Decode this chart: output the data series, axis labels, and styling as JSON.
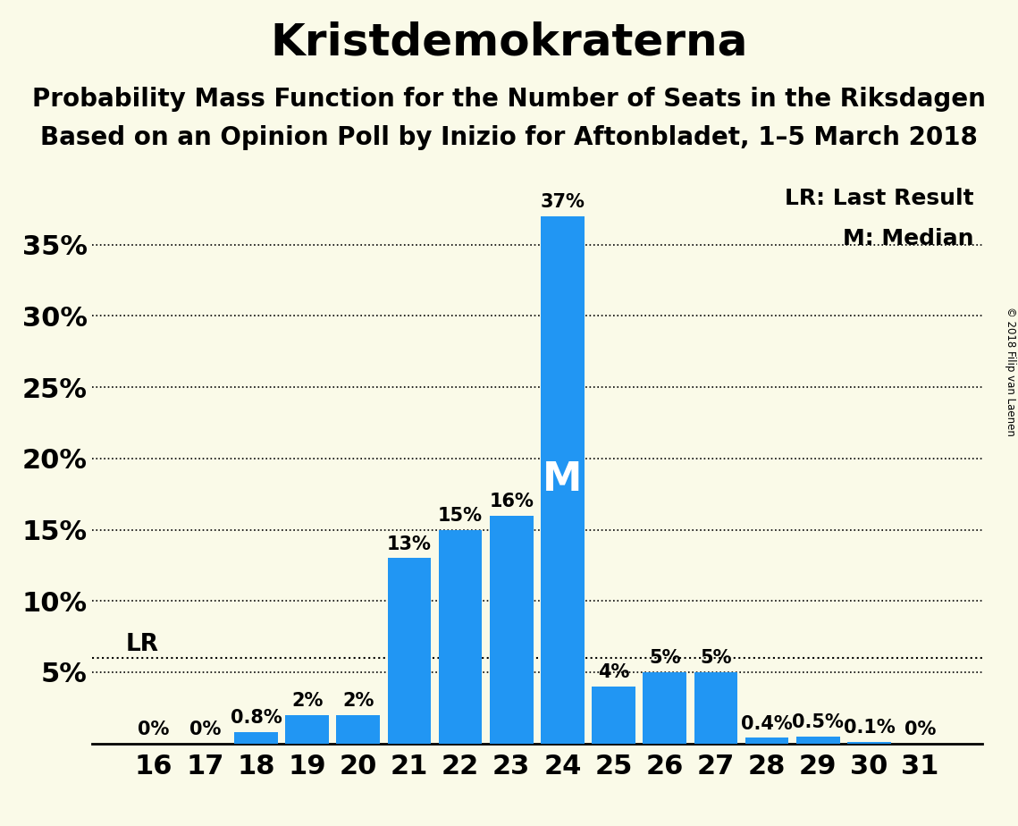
{
  "title": "Kristdemokraterna",
  "subtitle1": "Probability Mass Function for the Number of Seats in the Riksdagen",
  "subtitle2": "Based on an Opinion Poll by Inizio for Aftonbladet, 1–5 March 2018",
  "copyright": "© 2018 Filip van Laenen",
  "seats": [
    16,
    17,
    18,
    19,
    20,
    21,
    22,
    23,
    24,
    25,
    26,
    27,
    28,
    29,
    30,
    31
  ],
  "values": [
    0.0,
    0.0,
    0.8,
    2.0,
    2.0,
    13.0,
    15.0,
    16.0,
    37.0,
    4.0,
    5.0,
    5.0,
    0.4,
    0.5,
    0.1,
    0.0
  ],
  "labels": [
    "0%",
    "0%",
    "0.8%",
    "2%",
    "2%",
    "13%",
    "15%",
    "16%",
    "37%",
    "4%",
    "5%",
    "5%",
    "0.4%",
    "0.5%",
    "0.1%",
    "0%"
  ],
  "bar_color": "#2196F3",
  "background_color": "#FAFAE8",
  "lr_value": 6.0,
  "lr_label": "LR",
  "median_seat": 24,
  "median_label": "M",
  "legend_lr": "LR: Last Result",
  "legend_m": "M: Median",
  "yticks": [
    5,
    10,
    15,
    20,
    25,
    30,
    35
  ],
  "ylim": [
    0,
    40
  ],
  "title_fontsize": 36,
  "subtitle_fontsize": 20,
  "label_fontsize": 15,
  "tick_fontsize": 22
}
